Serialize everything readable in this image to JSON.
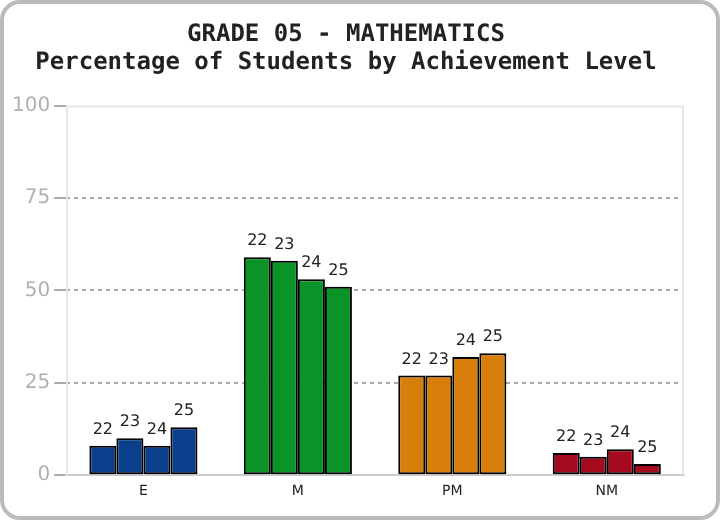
{
  "chart_data": {
    "type": "bar",
    "title": "GRADE 05 - MATHEMATICS",
    "subtitle": "Percentage of Students by Achievement Level",
    "categories": [
      "E",
      "M",
      "PM",
      "NM"
    ],
    "series": [
      {
        "name": "22",
        "colors": [
          "#0b3f8c",
          "#0a9428",
          "#d87e0a",
          "#a50a1e"
        ],
        "values": [
          8,
          59,
          27,
          6
        ]
      },
      {
        "name": "23",
        "colors": [
          "#0b3f8c",
          "#0a9428",
          "#d87e0a",
          "#a50a1e"
        ],
        "values": [
          10,
          58,
          27,
          5
        ]
      },
      {
        "name": "24",
        "colors": [
          "#0b3f8c",
          "#0a9428",
          "#d87e0a",
          "#a50a1e"
        ],
        "values": [
          8,
          53,
          32,
          7
        ]
      },
      {
        "name": "25",
        "colors": [
          "#0b3f8c",
          "#0a9428",
          "#d87e0a",
          "#a50a1e"
        ],
        "values": [
          13,
          51,
          33,
          3
        ]
      }
    ],
    "ylim": [
      0,
      100
    ],
    "yticks": [
      0,
      25,
      50,
      75,
      100
    ],
    "grid": "y",
    "legend": false
  }
}
